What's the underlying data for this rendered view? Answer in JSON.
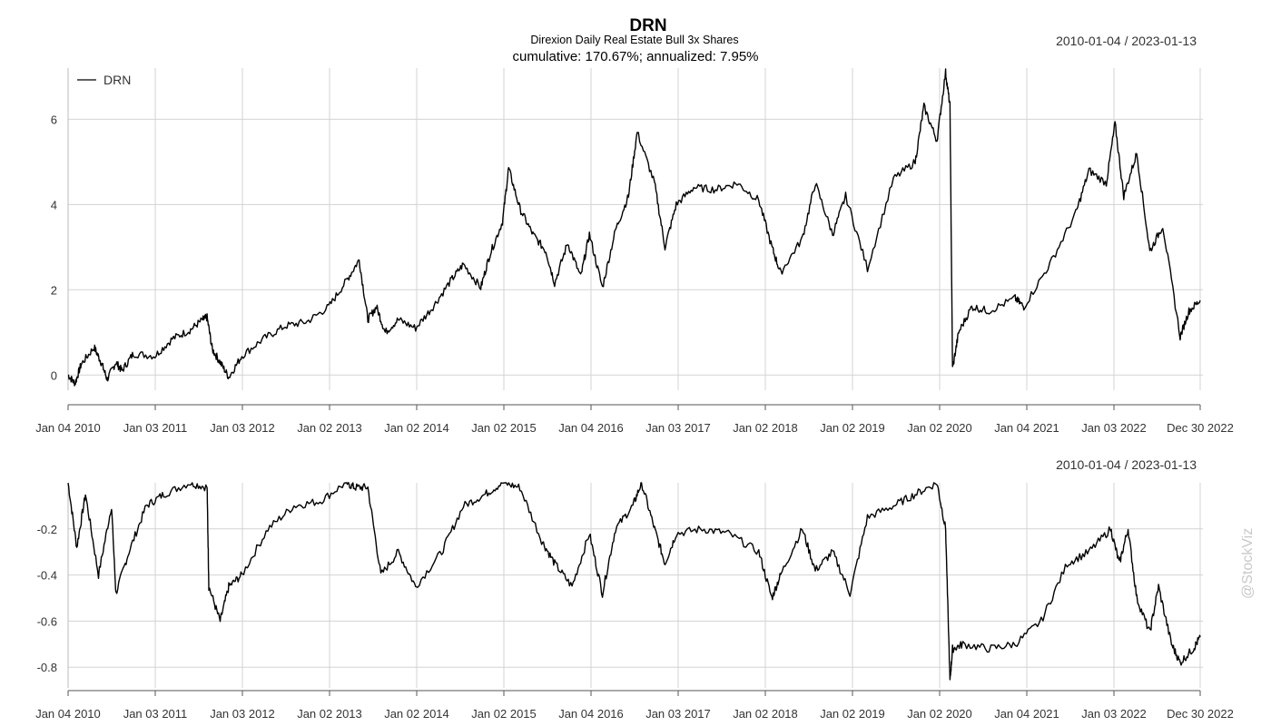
{
  "title": "DRN",
  "subtitle": "Direxion Daily Real Estate Bull 3x Shares",
  "stats": "cumulative: 170.67%; annualized: 7.95%",
  "date_range_top": "2010-01-04 / 2023-01-13",
  "date_range_bottom": "2010-01-04 / 2023-01-13",
  "watermark": "@StockViz",
  "colors": {
    "line": "#000000",
    "grid": "#d3d3d3",
    "axis": "#555555",
    "text": "#333333"
  },
  "chart_data": [
    {
      "type": "line",
      "name": "cumulative-returns",
      "legend": "DRN",
      "legend_position": "top-left",
      "grid": true,
      "x_tick_labels": [
        "Jan 04 2010",
        "Jan 03 2011",
        "Jan 03 2012",
        "Jan 02 2013",
        "Jan 02 2014",
        "Jan 02 2015",
        "Jan 04 2016",
        "Jan 03 2017",
        "Jan 02 2018",
        "Jan 02 2019",
        "Jan 02 2020",
        "Jan 04 2021",
        "Jan 03 2022",
        "Dec 30 2022"
      ],
      "y_ticks": [
        0,
        2,
        4,
        6
      ],
      "y_tick_labels": [
        "0",
        "2",
        "4",
        "6"
      ],
      "ylim": [
        -0.25,
        7.2
      ],
      "series": [
        {
          "name": "DRN",
          "x": [
            2010.0,
            2010.08,
            2010.15,
            2010.3,
            2010.38,
            2010.45,
            2010.55,
            2010.62,
            2010.75,
            2011.0,
            2011.2,
            2011.4,
            2011.55,
            2011.6,
            2011.66,
            2011.75,
            2011.85,
            2012.0,
            2012.25,
            2012.5,
            2012.75,
            2013.0,
            2013.2,
            2013.35,
            2013.45,
            2013.55,
            2013.65,
            2013.8,
            2014.0,
            2014.2,
            2014.4,
            2014.55,
            2014.75,
            2014.85,
            2015.0,
            2015.07,
            2015.2,
            2015.35,
            2015.5,
            2015.6,
            2015.75,
            2015.9,
            2016.0,
            2016.15,
            2016.3,
            2016.45,
            2016.55,
            2016.75,
            2016.87,
            2017.0,
            2017.2,
            2017.45,
            2017.7,
            2017.95,
            2018.1,
            2018.2,
            2018.45,
            2018.6,
            2018.8,
            2018.95,
            2019.2,
            2019.5,
            2019.75,
            2019.85,
            2020.0,
            2020.1,
            2020.15,
            2020.18,
            2020.25,
            2020.4,
            2020.6,
            2020.9,
            2021.0,
            2021.3,
            2021.6,
            2021.75,
            2021.95,
            2022.05,
            2022.15,
            2022.3,
            2022.45,
            2022.6,
            2022.8,
            2022.9,
            2023.03
          ],
          "y": [
            0.0,
            -0.2,
            0.25,
            0.65,
            0.3,
            -0.1,
            0.3,
            0.1,
            0.5,
            0.45,
            0.85,
            1.05,
            1.3,
            1.35,
            0.6,
            0.3,
            -0.05,
            0.45,
            0.85,
            1.15,
            1.25,
            1.6,
            2.2,
            2.7,
            1.3,
            1.6,
            1.0,
            1.3,
            1.1,
            1.6,
            2.2,
            2.6,
            2.05,
            2.8,
            3.6,
            4.85,
            3.9,
            3.3,
            2.9,
            2.15,
            3.1,
            2.3,
            3.3,
            2.05,
            3.4,
            4.2,
            5.7,
            4.5,
            3.0,
            4.0,
            4.4,
            4.35,
            4.5,
            4.1,
            3.0,
            2.4,
            3.2,
            4.5,
            3.3,
            4.2,
            2.5,
            4.6,
            5.0,
            6.3,
            5.5,
            7.1,
            6.3,
            0.15,
            1.0,
            1.6,
            1.5,
            1.8,
            1.6,
            2.6,
            3.8,
            4.8,
            4.5,
            5.9,
            4.2,
            5.2,
            2.9,
            3.5,
            0.9,
            1.5,
            1.75
          ]
        }
      ]
    },
    {
      "type": "line",
      "name": "drawdown",
      "grid": true,
      "x_tick_labels": [
        "Jan 04 2010",
        "Jan 03 2011",
        "Jan 03 2012",
        "Jan 02 2013",
        "Jan 02 2014",
        "Jan 02 2015",
        "Jan 04 2016",
        "Jan 03 2017",
        "Jan 02 2018",
        "Jan 02 2019",
        "Jan 02 2020",
        "Jan 04 2021",
        "Jan 03 2022",
        "Dec 30 2022"
      ],
      "y_ticks": [
        -0.2,
        -0.4,
        -0.6,
        -0.8
      ],
      "y_tick_labels": [
        "-0.2",
        "-0.4",
        "-0.6",
        "-0.8"
      ],
      "ylim": [
        -0.87,
        0.0
      ],
      "series": [
        {
          "name": "DRN",
          "x": [
            2010.0,
            2010.1,
            2010.2,
            2010.35,
            2010.5,
            2010.55,
            2010.7,
            2010.9,
            2011.1,
            2011.4,
            2011.6,
            2011.62,
            2011.75,
            2011.85,
            2012.0,
            2012.3,
            2012.6,
            2012.9,
            2013.2,
            2013.3,
            2013.45,
            2013.6,
            2013.8,
            2014.0,
            2014.3,
            2014.55,
            2014.8,
            2015.0,
            2015.2,
            2015.45,
            2015.6,
            2015.8,
            2016.0,
            2016.15,
            2016.3,
            2016.5,
            2016.6,
            2016.75,
            2016.87,
            2017.0,
            2017.3,
            2017.6,
            2017.95,
            2018.1,
            2018.2,
            2018.45,
            2018.6,
            2018.8,
            2019.0,
            2019.2,
            2019.5,
            2019.75,
            2020.0,
            2020.1,
            2020.15,
            2020.18,
            2020.3,
            2020.6,
            2020.9,
            2021.2,
            2021.5,
            2021.75,
            2022.0,
            2022.1,
            2022.2,
            2022.3,
            2022.45,
            2022.55,
            2022.7,
            2022.8,
            2022.95,
            2023.03
          ],
          "y": [
            0.0,
            -0.28,
            -0.05,
            -0.4,
            -0.1,
            -0.48,
            -0.3,
            -0.1,
            -0.05,
            0.0,
            -0.02,
            -0.45,
            -0.6,
            -0.45,
            -0.4,
            -0.2,
            -0.1,
            -0.08,
            0.0,
            -0.02,
            -0.02,
            -0.4,
            -0.3,
            -0.45,
            -0.3,
            -0.1,
            -0.05,
            0.0,
            -0.02,
            -0.25,
            -0.35,
            -0.45,
            -0.22,
            -0.48,
            -0.2,
            -0.1,
            0.0,
            -0.2,
            -0.35,
            -0.22,
            -0.2,
            -0.22,
            -0.3,
            -0.5,
            -0.4,
            -0.2,
            -0.38,
            -0.3,
            -0.48,
            -0.15,
            -0.1,
            -0.05,
            0.0,
            -0.2,
            -0.86,
            -0.72,
            -0.7,
            -0.72,
            -0.7,
            -0.6,
            -0.35,
            -0.3,
            -0.2,
            -0.35,
            -0.2,
            -0.5,
            -0.65,
            -0.45,
            -0.7,
            -0.78,
            -0.72,
            -0.67
          ]
        }
      ]
    }
  ]
}
